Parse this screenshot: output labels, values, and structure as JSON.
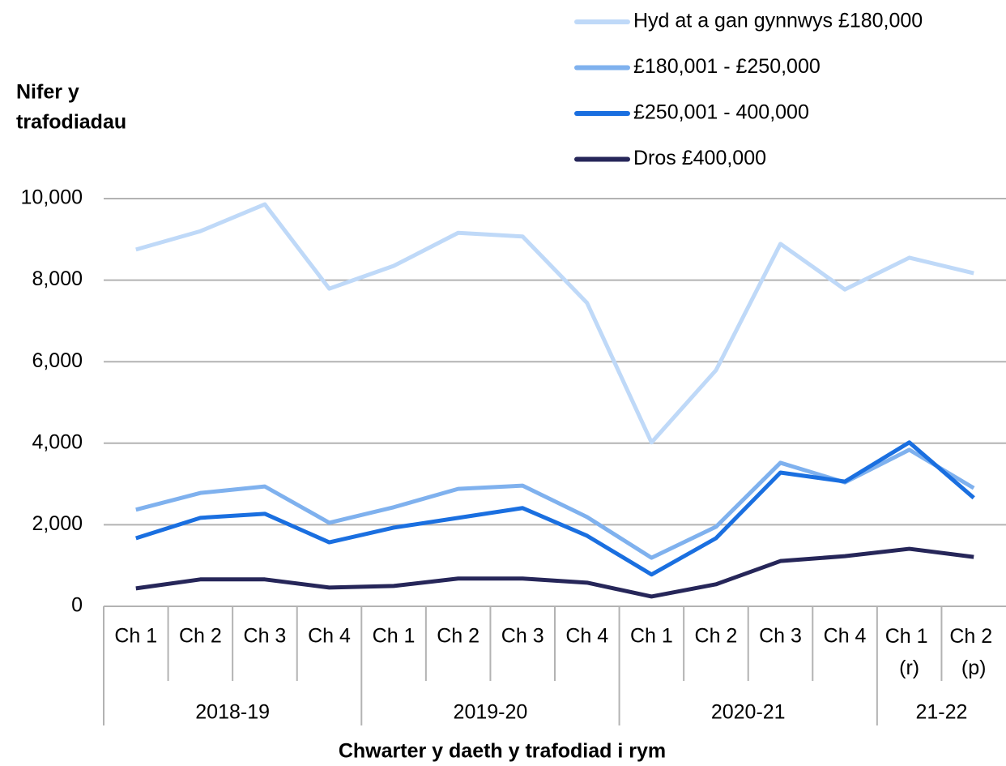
{
  "chart_data": {
    "type": "line",
    "ylabel_lines": [
      "Nifer y",
      "trafodiadau"
    ],
    "xlabel": "Chwarter y daeth y trafodiad i rym",
    "categories": [
      "Ch 1",
      "Ch 2",
      "Ch 3",
      "Ch 4",
      "Ch 1",
      "Ch 2",
      "Ch 3",
      "Ch 4",
      "Ch 1",
      "Ch 2",
      "Ch 3",
      "Ch 4",
      "Ch 1 (r)",
      "Ch 2 (p)"
    ],
    "groups": [
      {
        "label": "2018-19",
        "span": 4
      },
      {
        "label": "2019-20",
        "span": 4
      },
      {
        "label": "2020-21",
        "span": 4
      },
      {
        "label": "21-22",
        "span": 2
      }
    ],
    "series": [
      {
        "name": "Hyd at a gan gynnwys £180,000",
        "color": "#bfd9f8",
        "values": [
          8750,
          9200,
          9860,
          7790,
          8350,
          9160,
          9070,
          7440,
          4020,
          5790,
          8890,
          7770,
          8550,
          8170
        ]
      },
      {
        "name": "£180,001 - £250,000",
        "color": "#7fb1ee",
        "values": [
          2370,
          2780,
          2940,
          2050,
          2430,
          2880,
          2960,
          2190,
          1190,
          1950,
          3520,
          3040,
          3840,
          2900
        ]
      },
      {
        "name": "£250,001 - 400,000",
        "color": "#1a6fe0",
        "values": [
          1670,
          2170,
          2270,
          1570,
          1930,
          2170,
          2410,
          1730,
          780,
          1670,
          3280,
          3060,
          4020,
          2660
        ]
      },
      {
        "name": "Dros £400,000",
        "color": "#262659",
        "values": [
          440,
          660,
          660,
          460,
          500,
          680,
          680,
          580,
          240,
          540,
          1110,
          1230,
          1410,
          1210
        ]
      }
    ],
    "ylim": [
      0,
      10000
    ],
    "yticks": [
      0,
      {
        "value": 2000,
        "label": "2,000"
      },
      {
        "value": 4000,
        "label": "4,000"
      },
      {
        "value": 6000,
        "label": "6,000"
      },
      {
        "value": 8000,
        "label": "8,000"
      },
      {
        "value": 10000,
        "label": "10,000"
      }
    ],
    "grid": true,
    "legend": "top-right"
  }
}
